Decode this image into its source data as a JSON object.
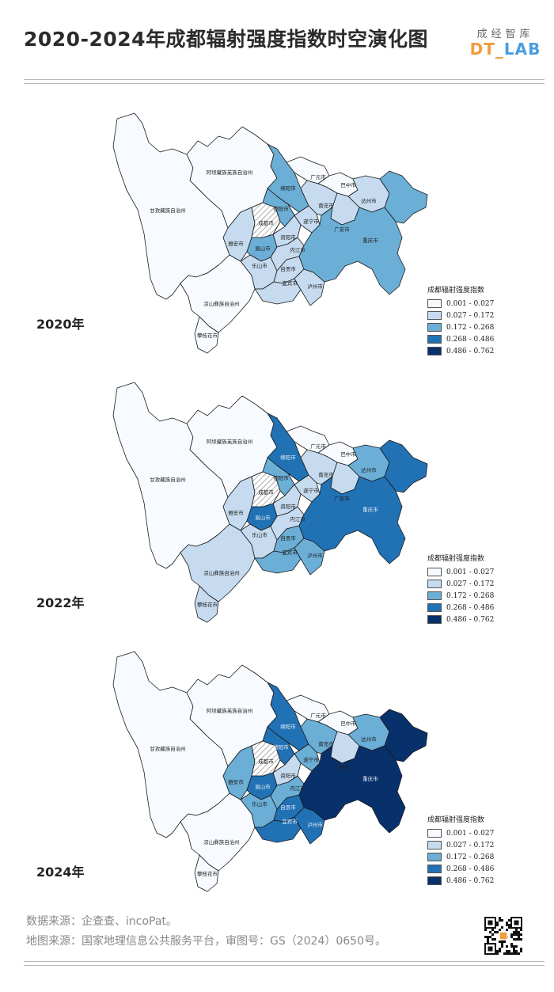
{
  "header": {
    "title": "2020-2024年成都辐射强度指数时空演化图",
    "brand_cn": "成经智库",
    "brand_en_dt": "DT_",
    "brand_en_lab": "LAB"
  },
  "colors": [
    "#f7fbff",
    "#c6dbef",
    "#6baed6",
    "#2171b5",
    "#08306b"
  ],
  "legend": {
    "title": "成都辐射强度指数",
    "classes": [
      "0.001 - 0.027",
      "0.027 - 0.172",
      "0.172 - 0.268",
      "0.268 - 0.486",
      "0.486 - 0.762"
    ]
  },
  "region_labels": {
    "ganzi": "甘孜藏族自治州",
    "aba": "阿坝藏族羌族自治州",
    "liangshan_2020": "凉山彝族自治州",
    "liangshan": "凉山彝族自治州",
    "panzhihua": "攀枝花市",
    "guangyuan": "广元市",
    "bazhong": "巴中市",
    "mianyang": "绵阳市",
    "deyang": "德阳市",
    "chengdu": "成都市",
    "nanchong": "南充市",
    "dazhou": "达州市",
    "guangan": "广安市",
    "suining": "遂宁市",
    "ziyang": "资阳市",
    "meishan": "眉山市",
    "yaan": "雅安市",
    "leshan": "乐山市",
    "neijiang": "内江市",
    "zigong": "自贡市",
    "yibin": "宜宾市",
    "luzhou": "泸州市",
    "chongqing": "重庆市"
  },
  "maps": [
    {
      "year": "2020年",
      "classes": {
        "ganzi": 0,
        "aba": 0,
        "liangshan": 0,
        "panzhihua": 0,
        "guangyuan": 0,
        "bazhong": 0,
        "mianyang": 2,
        "deyang": 2,
        "nanchong": 1,
        "dazhou": 1,
        "guangan": 1,
        "suining": 1,
        "ziyang": 1,
        "meishan": 2,
        "yaan": 1,
        "leshan": 1,
        "neijiang": 1,
        "zigong": 1,
        "yibin": 1,
        "luzhou": 1,
        "chongqing": 2,
        "east_ext": 2
      }
    },
    {
      "year": "2022年",
      "classes": {
        "ganzi": 0,
        "aba": 0,
        "liangshan": 1,
        "panzhihua": 1,
        "guangyuan": 0,
        "bazhong": 0,
        "mianyang": 3,
        "deyang": 2,
        "nanchong": 1,
        "dazhou": 2,
        "guangan": 1,
        "suining": 1,
        "ziyang": 1,
        "meishan": 3,
        "yaan": 1,
        "leshan": 1,
        "neijiang": 1,
        "zigong": 2,
        "yibin": 2,
        "luzhou": 2,
        "chongqing": 3,
        "east_ext": 3
      }
    },
    {
      "year": "2024年",
      "classes": {
        "ganzi": 0,
        "aba": 0,
        "liangshan": 0,
        "panzhihua": 0,
        "guangyuan": 0,
        "bazhong": 0,
        "mianyang": 3,
        "deyang": 3,
        "nanchong": 2,
        "dazhou": 2,
        "guangan": 1,
        "suining": 2,
        "ziyang": 1,
        "meishan": 3,
        "yaan": 2,
        "leshan": 2,
        "neijiang": 2,
        "zigong": 3,
        "yibin": 3,
        "luzhou": 3,
        "chongqing": 4,
        "east_ext": 4
      }
    }
  ],
  "sources": {
    "data": "数据来源：企查查、incoPat。",
    "map": "地图来源：国家地理信息公共服务平台，审图号：GS（2024）0650号。"
  }
}
